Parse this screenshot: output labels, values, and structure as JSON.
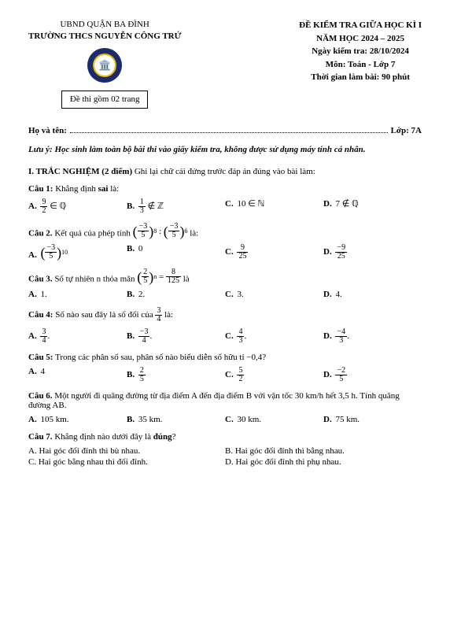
{
  "header_left": {
    "line1": "UBND QUẬN BA ĐÌNH",
    "line2": "TRƯỜNG THCS NGUYỄN CÔNG TRỨ",
    "box": "Đề thi gồm 02 trang"
  },
  "header_right": {
    "l1": "ĐỀ KIỂM TRA GIỮA HỌC KÌ I",
    "l2": "NĂM HỌC 2024 – 2025",
    "l3": "Ngày kiểm tra: 28/10/2024",
    "l4": "Môn: Toán - Lớp 7",
    "l5": "Thời gian làm bài: 90 phút"
  },
  "name_label": "Họ và tên:",
  "class_label": "Lớp: 7A",
  "note": "Lưu ý: Học sinh làm toàn bộ bài thi vào giấy kiểm tra, không được sử dụng máy tính cá nhân.",
  "section1_bold": "I. TRẮC NGHIỆM (2 điểm)",
  "section1_rest": " Ghi lại chữ cái đứng trước đáp án đúng vào bài làm:",
  "q1": {
    "label": "Câu 1:",
    "text": " Khẳng định sai là:"
  },
  "q1_opts": {
    "A": {
      "frac_num": "9",
      "frac_den": "2",
      "tail": " ∈ ℚ"
    },
    "B": {
      "frac_num": "1",
      "frac_den": "3",
      "tail": " ∉ ℤ"
    },
    "C": "10 ∈ ℕ",
    "D": "7 ∉ ℚ"
  },
  "q2": {
    "label": "Câu 2.",
    "text": " Kết quả của phép tính ",
    "tail": "là:"
  },
  "q2_base": {
    "num": "−3",
    "den": "5",
    "exp1": "8",
    "exp2": "6"
  },
  "q2_opts": {
    "A": {
      "type": "parenfrac",
      "num": "−3",
      "den": "5",
      "exp": "10"
    },
    "B": "0",
    "C": {
      "type": "frac",
      "num": "9",
      "den": "25"
    },
    "D": {
      "type": "frac",
      "num": "−9",
      "den": "25"
    }
  },
  "q3": {
    "label": "Câu 3.",
    "text": " Số tự nhiên n thỏa mãn ",
    "tail": " là"
  },
  "q3_expr": {
    "base_num": "2",
    "base_den": "5",
    "exp": "n",
    "rhs_num": "8",
    "rhs_den": "125"
  },
  "q3_opts": {
    "A": "1.",
    "B": "2.",
    "C": "3.",
    "D": "4."
  },
  "q4": {
    "label": "Câu 4:",
    "text": " Số nào sau đây là số đối của ",
    "frac_num": "3",
    "frac_den": "4",
    "tail": "là:"
  },
  "q4_opts": {
    "A": {
      "num": "3",
      "den": "4",
      "suf": "."
    },
    "B": {
      "num": "−3",
      "den": "4",
      "suf": "."
    },
    "C": {
      "num": "4",
      "den": "3",
      "suf": "."
    },
    "D": {
      "num": "−4",
      "den": "3",
      "suf": "."
    }
  },
  "q5": {
    "label": "Câu 5:",
    "text": " Trong các phân số sau, phân số nào biểu diễn số hữu tỉ −0,4?"
  },
  "q5_opts": {
    "A": "4",
    "B": {
      "num": "2",
      "den": "5"
    },
    "C": {
      "num": "5",
      "den": "2"
    },
    "D": {
      "num": "−2",
      "den": "5"
    }
  },
  "q6": {
    "label": "Câu 6.",
    "text": " Một người đi quãng đường từ địa điểm A đến địa điểm B với vận tốc 30 km/h hết 3,5 h. Tính quãng đường AB."
  },
  "q6_opts": {
    "A": "105 km.",
    "B": "35 km.",
    "C": "30 km.",
    "D": "75 km."
  },
  "q7": {
    "label": "Câu 7.",
    "text": " Khẳng định nào dưới đây là đúng?"
  },
  "q7_opts": {
    "A": "Hai góc đối đỉnh thì bù nhau.",
    "B": "Hai góc đối đỉnh thì bằng nhau.",
    "C": "Hai góc bằng nhau thì đối đỉnh.",
    "D": "Hai góc đối đỉnh thì phụ nhau."
  }
}
